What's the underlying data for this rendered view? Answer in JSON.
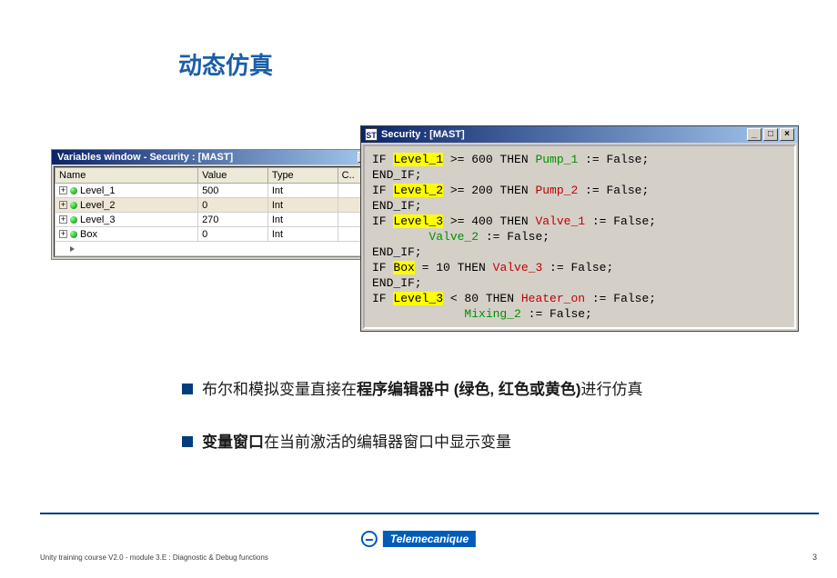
{
  "title": "动态仿真",
  "vars_window": {
    "title": "Variables window - Security : [MAST]",
    "columns": [
      "Name",
      "Value",
      "Type",
      "C.."
    ],
    "rows": [
      {
        "name": "Level_1",
        "value": "500",
        "type": "Int",
        "c": "",
        "sel": false
      },
      {
        "name": "Level_2",
        "value": "0",
        "type": "Int",
        "c": "",
        "sel": true
      },
      {
        "name": "Level_3",
        "value": "270",
        "type": "Int",
        "c": "",
        "sel": false
      },
      {
        "name": "Box",
        "value": "0",
        "type": "Int",
        "c": "",
        "sel": false
      }
    ]
  },
  "code_window": {
    "title": "Security : [MAST]",
    "icon_text": "ST"
  },
  "code": {
    "l1a": "IF ",
    "l1_hl": "Level_1",
    "l1b": " >= 600 THEN ",
    "l1_g": "Pump_1",
    "l1c": " := False;",
    "l2": "END_IF;",
    "l3a": "IF ",
    "l3_hl": "Level_2",
    "l3b": " >= 200 THEN ",
    "l3_r": "Pump_2",
    "l3c": " := False;",
    "l4": "END_IF;",
    "l5a": "IF ",
    "l5_hl": "Level_3",
    "l5b": " >= 400 THEN ",
    "l5_r": "Valve_1",
    "l5c": " := False;",
    "l6a": "        ",
    "l6_g": "Valve_2",
    "l6b": " := False;",
    "l7": "END_IF;",
    "l8a": "IF ",
    "l8_hl": "Box",
    "l8b": " = 10 THEN ",
    "l8_r": "Valve_3",
    "l8c": " := False;",
    "l9": "END_IF;",
    "l10a": "IF ",
    "l10_hl": "Level_3",
    "l10b": " < 80 THEN ",
    "l10_r": "Heater_on",
    "l10c": " := False;",
    "l11a": "             ",
    "l11_g": "Mixing_2",
    "l11b": " := False;"
  },
  "bullets": {
    "b1_pre": "布尔和模拟变量直接在",
    "b1_bold": "程序编辑器中 (绿色, 红色或黄色)",
    "b1_post": "进行仿真",
    "b2_bold": "变量窗口",
    "b2_post": "在当前激活的编辑器窗口中显示变量"
  },
  "brand": "Telemecanique",
  "footer": "Unity training course V2.0 - module 3.E : Diagnostic & Debug functions",
  "page": "3",
  "colors": {
    "title": "#1b5ea8",
    "brand": "#005cb9",
    "footer_line": "#003e7e",
    "highlight": "#ffff00",
    "code_green": "#009000",
    "code_red": "#c00000",
    "win_titlebar_from": "#0a246a",
    "win_titlebar_to": "#a6caf0",
    "win_bg": "#d4d0c8"
  }
}
